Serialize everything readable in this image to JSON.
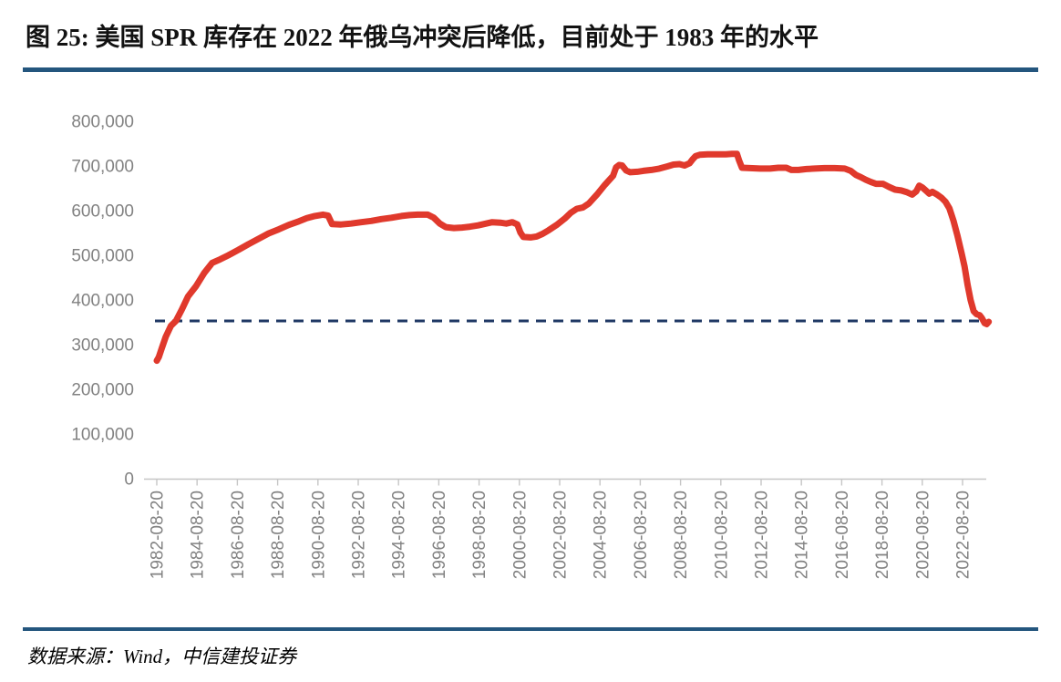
{
  "figure": {
    "title": "图 25: 美国 SPR 库存在 2022 年俄乌冲突后降低，目前处于 1983 年的水平",
    "source": "数据来源：Wind，中信建投证券"
  },
  "colors": {
    "rule_bar": "#24567e",
    "series_red": "#e0392c",
    "reference_navy": "#1f3864",
    "axis_gray": "#c6c6c6",
    "label_gray": "#828282"
  },
  "chart_data": {
    "type": "line",
    "title": "图 25: 美国 SPR 库存在 2022 年俄乌冲突后降低，目前处于 1983 年的水平",
    "ylabel": "",
    "xlabel": "",
    "ylim": [
      0,
      800000
    ],
    "grid": false,
    "legend": false,
    "yticks": [
      {
        "value": 0,
        "label": "0"
      },
      {
        "value": 100000,
        "label": "100,000"
      },
      {
        "value": 200000,
        "label": "200,000"
      },
      {
        "value": 300000,
        "label": "300,000"
      },
      {
        "value": 400000,
        "label": "400,000"
      },
      {
        "value": 500000,
        "label": "500,000"
      },
      {
        "value": 600000,
        "label": "600,000"
      },
      {
        "value": 700000,
        "label": "700,000"
      },
      {
        "value": 800000,
        "label": "800,000"
      }
    ],
    "x_axis": {
      "start_year": 1982.65,
      "tick_interval_years": 2,
      "tick_labels": [
        "1982-08-20",
        "1984-08-20",
        "1986-08-20",
        "1988-08-20",
        "1990-08-20",
        "1992-08-20",
        "1994-08-20",
        "1996-08-20",
        "1998-08-20",
        "2000-08-20",
        "2002-08-20",
        "2004-08-20",
        "2006-08-20",
        "2008-08-20",
        "2010-08-20",
        "2012-08-20",
        "2014-08-20",
        "2016-08-20",
        "2018-08-20",
        "2020-08-20",
        "2022-08-20"
      ]
    },
    "reference_line": {
      "value": 353000,
      "style": "dashed",
      "color": "#1f3864"
    },
    "series": [
      {
        "name": "美国SPR库存",
        "color": "#e0392c",
        "points": [
          [
            1982.65,
            264000
          ],
          [
            1982.75,
            272000
          ],
          [
            1982.9,
            292000
          ],
          [
            1983.1,
            318000
          ],
          [
            1983.35,
            342000
          ],
          [
            1983.6,
            353000
          ],
          [
            1983.9,
            379000
          ],
          [
            1984.2,
            408000
          ],
          [
            1984.6,
            431000
          ],
          [
            1985.0,
            460000
          ],
          [
            1985.4,
            483000
          ],
          [
            1985.8,
            491000
          ],
          [
            1986.2,
            500000
          ],
          [
            1986.7,
            512000
          ],
          [
            1987.2,
            525000
          ],
          [
            1987.7,
            537000
          ],
          [
            1988.2,
            549000
          ],
          [
            1988.7,
            558000
          ],
          [
            1989.2,
            568000
          ],
          [
            1989.7,
            576000
          ],
          [
            1990.1,
            583000
          ],
          [
            1990.5,
            588000
          ],
          [
            1990.9,
            591000
          ],
          [
            1991.15,
            589000
          ],
          [
            1991.35,
            570000
          ],
          [
            1991.8,
            569000
          ],
          [
            1992.3,
            571000
          ],
          [
            1992.8,
            574000
          ],
          [
            1993.3,
            577000
          ],
          [
            1993.8,
            581000
          ],
          [
            1994.3,
            584000
          ],
          [
            1994.8,
            588000
          ],
          [
            1995.2,
            590000
          ],
          [
            1995.6,
            591000
          ],
          [
            1996.1,
            591000
          ],
          [
            1996.4,
            584000
          ],
          [
            1996.7,
            571000
          ],
          [
            1997.0,
            563000
          ],
          [
            1997.4,
            561000
          ],
          [
            1997.8,
            562000
          ],
          [
            1998.2,
            564000
          ],
          [
            1998.6,
            567000
          ],
          [
            1999.0,
            571000
          ],
          [
            1999.3,
            574000
          ],
          [
            1999.7,
            573000
          ],
          [
            2000.0,
            571000
          ],
          [
            2000.3,
            574000
          ],
          [
            2000.55,
            569000
          ],
          [
            2000.7,
            551000
          ],
          [
            2000.85,
            541000
          ],
          [
            2001.2,
            540000
          ],
          [
            2001.5,
            542000
          ],
          [
            2001.8,
            548000
          ],
          [
            2002.1,
            556000
          ],
          [
            2002.5,
            568000
          ],
          [
            2002.9,
            582000
          ],
          [
            2003.2,
            595000
          ],
          [
            2003.5,
            604000
          ],
          [
            2003.8,
            607000
          ],
          [
            2004.1,
            616000
          ],
          [
            2004.5,
            636000
          ],
          [
            2004.9,
            658000
          ],
          [
            2005.3,
            678000
          ],
          [
            2005.45,
            697000
          ],
          [
            2005.6,
            702000
          ],
          [
            2005.75,
            701000
          ],
          [
            2005.95,
            690000
          ],
          [
            2006.15,
            686000
          ],
          [
            2006.5,
            687000
          ],
          [
            2006.8,
            689000
          ],
          [
            2007.2,
            691000
          ],
          [
            2007.6,
            694000
          ],
          [
            2008.0,
            699000
          ],
          [
            2008.3,
            703000
          ],
          [
            2008.6,
            704000
          ],
          [
            2008.85,
            701000
          ],
          [
            2009.1,
            706000
          ],
          [
            2009.25,
            715000
          ],
          [
            2009.4,
            722000
          ],
          [
            2009.6,
            725000
          ],
          [
            2010.0,
            726000
          ],
          [
            2010.4,
            726000
          ],
          [
            2010.9,
            726000
          ],
          [
            2011.2,
            727000
          ],
          [
            2011.45,
            727000
          ],
          [
            2011.55,
            713000
          ],
          [
            2011.7,
            696000
          ],
          [
            2012.1,
            695000
          ],
          [
            2012.6,
            694000
          ],
          [
            2013.1,
            694000
          ],
          [
            2013.5,
            696000
          ],
          [
            2013.9,
            696000
          ],
          [
            2014.15,
            691000
          ],
          [
            2014.5,
            691000
          ],
          [
            2014.9,
            693000
          ],
          [
            2015.3,
            694000
          ],
          [
            2015.8,
            695000
          ],
          [
            2016.3,
            695000
          ],
          [
            2016.8,
            694000
          ],
          [
            2017.1,
            689000
          ],
          [
            2017.35,
            680000
          ],
          [
            2017.6,
            675000
          ],
          [
            2017.85,
            669000
          ],
          [
            2018.1,
            664000
          ],
          [
            2018.35,
            660000
          ],
          [
            2018.7,
            660000
          ],
          [
            2019.0,
            653000
          ],
          [
            2019.3,
            647000
          ],
          [
            2019.6,
            645000
          ],
          [
            2019.9,
            641000
          ],
          [
            2020.15,
            636000
          ],
          [
            2020.35,
            643000
          ],
          [
            2020.5,
            656000
          ],
          [
            2020.65,
            652000
          ],
          [
            2020.85,
            644000
          ],
          [
            2021.0,
            638000
          ],
          [
            2021.15,
            642000
          ],
          [
            2021.35,
            637000
          ],
          [
            2021.6,
            629000
          ],
          [
            2021.8,
            620000
          ],
          [
            2022.0,
            605000
          ],
          [
            2022.2,
            577000
          ],
          [
            2022.4,
            543000
          ],
          [
            2022.6,
            505000
          ],
          [
            2022.75,
            475000
          ],
          [
            2022.9,
            434000
          ],
          [
            2023.05,
            400000
          ],
          [
            2023.2,
            375000
          ],
          [
            2023.35,
            368000
          ],
          [
            2023.5,
            366000
          ],
          [
            2023.6,
            360000
          ],
          [
            2023.75,
            348000
          ],
          [
            2023.85,
            346000
          ],
          [
            2023.95,
            351000
          ]
        ]
      }
    ]
  }
}
